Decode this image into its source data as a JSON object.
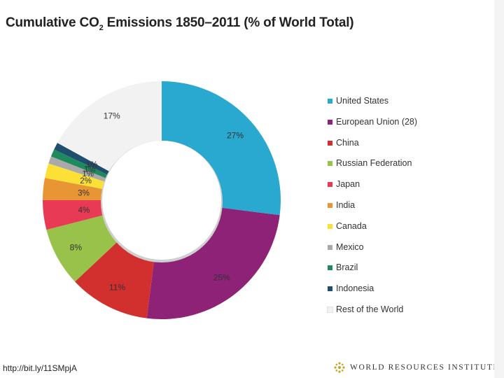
{
  "title": {
    "prefix": "Cumulative CO",
    "subscript": "2",
    "suffix": " Emissions 1850–2011 (% of World Total)"
  },
  "chart_data": {
    "type": "pie",
    "variant": "donut",
    "unit": "% of World Total",
    "slices": [
      {
        "label": "United States",
        "value": 27,
        "display": "27%",
        "color": "#29A9CF"
      },
      {
        "label": "European Union (28)",
        "value": 25,
        "display": "25%",
        "color": "#8E2276"
      },
      {
        "label": "China",
        "value": 11,
        "display": "11%",
        "color": "#D2302F"
      },
      {
        "label": "Russian Federation",
        "value": 8,
        "display": "8%",
        "color": "#98C24A"
      },
      {
        "label": "Japan",
        "value": 4,
        "display": "4%",
        "color": "#E83A55"
      },
      {
        "label": "India",
        "value": 3,
        "display": "3%",
        "color": "#E89533"
      },
      {
        "label": "Canada",
        "value": 2,
        "display": "2%",
        "color": "#FCE036"
      },
      {
        "label": "Mexico",
        "value": 1,
        "display": "1%",
        "color": "#A9A9A9"
      },
      {
        "label": "Brazil",
        "value": 1,
        "display": "1%",
        "color": "#1E8A5E"
      },
      {
        "label": "Indonesia",
        "value": 1,
        "display": "1%",
        "color": "#1E4F6E"
      },
      {
        "label": "Rest of the World",
        "value": 17,
        "display": "17%",
        "color": "#F2F2F2"
      }
    ]
  },
  "footer": {
    "url": "http://bit.ly/11SMpjA",
    "org": "WORLD RESOURCES INSTITUTE"
  },
  "colors": {
    "background": "#ffffff",
    "wri_logo": "#C9A227"
  }
}
